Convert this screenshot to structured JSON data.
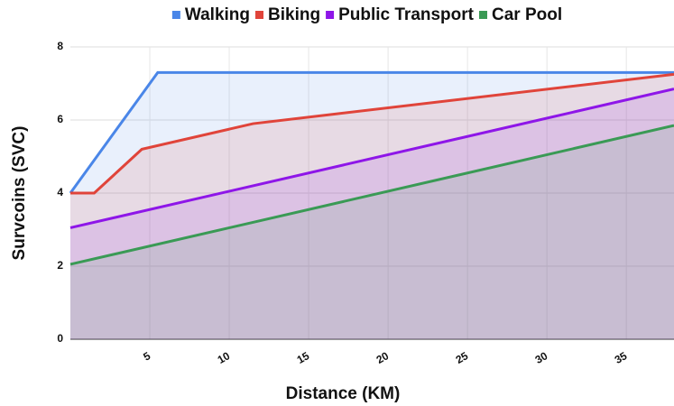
{
  "chart_data": {
    "type": "line",
    "xlabel": "Distance (KM)",
    "ylabel": "Survcoins (SVC)",
    "xlim": [
      0,
      38
    ],
    "xticks": [
      5,
      10,
      15,
      20,
      25,
      30,
      35
    ],
    "ylim": [
      0,
      8
    ],
    "yticks": [
      0,
      2,
      4,
      6,
      8
    ],
    "grid": true,
    "area": true,
    "legend": "top",
    "series": [
      {
        "name": "Walking",
        "color": "#4a86e8",
        "x": [
          0,
          5.5,
          38
        ],
        "values": [
          4,
          7.3,
          7.3
        ]
      },
      {
        "name": "Biking",
        "color": "#e0443a",
        "x": [
          0,
          1.5,
          4.5,
          11.5,
          38
        ],
        "values": [
          4,
          4,
          5.2,
          5.9,
          7.25
        ]
      },
      {
        "name": "Public Transport",
        "color": "#8e16e8",
        "x": [
          0,
          38
        ],
        "values": [
          3.05,
          6.85
        ]
      },
      {
        "name": "Car Pool",
        "color": "#3a9a55",
        "x": [
          0,
          38
        ],
        "values": [
          2.05,
          5.85
        ]
      }
    ]
  }
}
